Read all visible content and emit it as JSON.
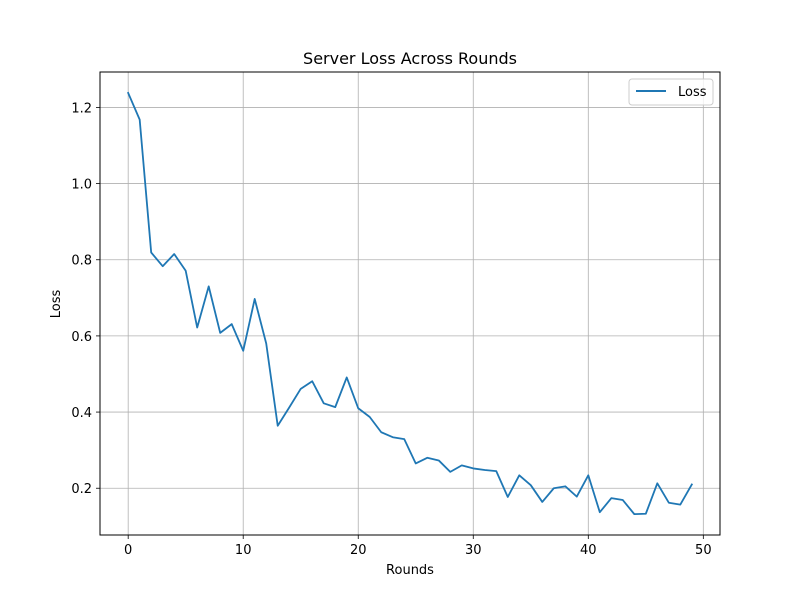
{
  "colors": {
    "series": "#1f77b4",
    "grid": "#b0b0b0",
    "axis": "#000000",
    "legend_border": "#cccccc"
  },
  "chart_data": {
    "type": "line",
    "title": "Server Loss Across Rounds",
    "xlabel": "Rounds",
    "ylabel": "Loss",
    "xlim": [
      -2.45,
      51.45
    ],
    "ylim": [
      0.0772,
      1.293
    ],
    "xticks": [
      0,
      10,
      20,
      30,
      40,
      50
    ],
    "xtick_labels": [
      "0",
      "10",
      "20",
      "30",
      "40",
      "50"
    ],
    "yticks": [
      0.2,
      0.4,
      0.6,
      0.8,
      1.0,
      1.2
    ],
    "ytick_labels": [
      "0.2",
      "0.4",
      "0.6",
      "0.8",
      "1.0",
      "1.2"
    ],
    "grid": true,
    "legend_position": "top-right",
    "series": [
      {
        "name": "Loss",
        "x": [
          0,
          1,
          2,
          3,
          4,
          5,
          6,
          7,
          8,
          9,
          10,
          11,
          12,
          13,
          14,
          15,
          16,
          17,
          18,
          19,
          20,
          21,
          22,
          23,
          24,
          25,
          26,
          27,
          28,
          29,
          30,
          31,
          32,
          33,
          34,
          35,
          36,
          37,
          38,
          39,
          40,
          41,
          42,
          43,
          44,
          45,
          46,
          47,
          48,
          49
        ],
        "values": [
          1.238,
          1.168,
          0.819,
          0.783,
          0.815,
          0.771,
          0.622,
          0.73,
          0.608,
          0.631,
          0.561,
          0.697,
          0.58,
          0.364,
          0.412,
          0.461,
          0.481,
          0.423,
          0.413,
          0.491,
          0.41,
          0.387,
          0.347,
          0.334,
          0.329,
          0.265,
          0.28,
          0.273,
          0.243,
          0.26,
          0.252,
          0.248,
          0.245,
          0.177,
          0.234,
          0.208,
          0.164,
          0.2,
          0.205,
          0.178,
          0.234,
          0.137,
          0.174,
          0.169,
          0.132,
          0.133,
          0.213,
          0.162,
          0.157,
          0.21
        ]
      }
    ]
  }
}
